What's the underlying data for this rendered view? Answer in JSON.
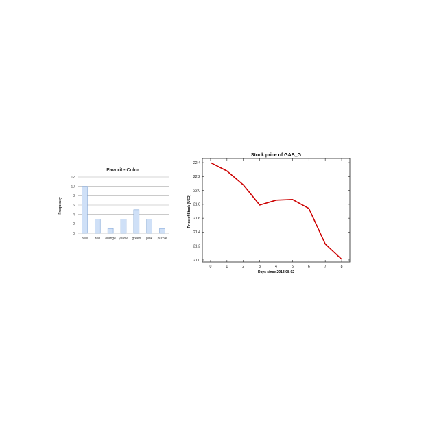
{
  "chart_data": [
    {
      "type": "bar",
      "title": "Favorite Color",
      "xlabel": "",
      "ylabel": "Frequency",
      "categories": [
        "blue",
        "red",
        "orange",
        "yellow",
        "green",
        "pink",
        "purple"
      ],
      "values": [
        10,
        3,
        1,
        3,
        5,
        3,
        1
      ],
      "ylim": [
        0,
        12
      ],
      "yticks": [
        0,
        2,
        4,
        6,
        8,
        10,
        12
      ],
      "grid": true,
      "bar_color": "#cfe0f7",
      "bar_edge_color": "#7fa4d6"
    },
    {
      "type": "line",
      "title": "Stock price of GAB_G",
      "xlabel": "Days since 2013-08-02",
      "ylabel": "Price of Stock (USD)",
      "x": [
        0,
        1,
        2,
        3,
        4,
        5,
        6,
        7,
        8
      ],
      "y": [
        22.4,
        22.28,
        22.08,
        21.79,
        21.86,
        21.87,
        21.74,
        21.23,
        21.01
      ],
      "xlim": [
        -0.5,
        8.5
      ],
      "ylim": [
        20.97,
        22.46
      ],
      "xticks": [
        0,
        1,
        2,
        3,
        4,
        5,
        6,
        7,
        8
      ],
      "yticks": [
        "21.0",
        "21.2",
        "21.4",
        "21.6",
        "21.8",
        "22.0",
        "22.2",
        "22.4"
      ],
      "grid": false,
      "line_color": "#cc0000"
    }
  ]
}
